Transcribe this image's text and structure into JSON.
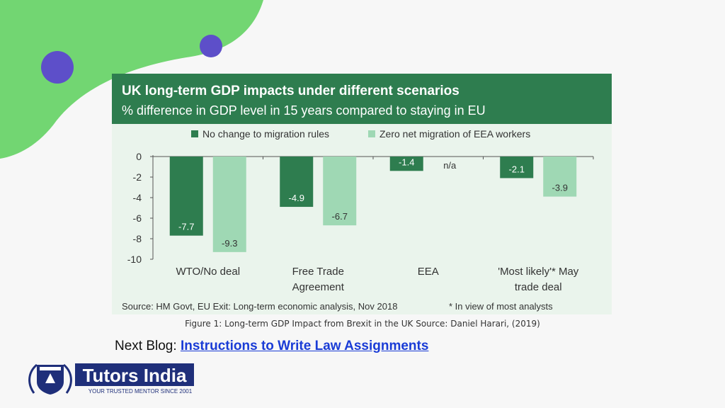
{
  "colors": {
    "header": "#2e7d4f",
    "panel": "#eaf4ec",
    "dark": "#2e7d4f",
    "light": "#9fd8b4",
    "blob": "#72d672",
    "dot": "#5d4fc9",
    "link": "#1a3cd6",
    "logo_navy": "#1f2f7a"
  },
  "chart_data": {
    "type": "bar",
    "title": "UK long-term GDP impacts under different scenarios",
    "subtitle": "% difference in GDP level in 15 years compared to staying in EU",
    "categories": [
      [
        "WTO/No deal"
      ],
      [
        "Free Trade",
        "Agreement"
      ],
      [
        "EEA"
      ],
      [
        "'Most likely'* May",
        "trade deal"
      ]
    ],
    "series": [
      {
        "name": "No change to migration rules",
        "values": [
          -7.7,
          -4.9,
          -1.4,
          -2.1
        ],
        "labels": [
          "-7.7",
          "-4.9",
          "-1.4",
          "-2.1"
        ]
      },
      {
        "name": "Zero net migration of EEA workers",
        "values": [
          -9.3,
          -6.7,
          null,
          -3.9
        ],
        "labels": [
          "-9.3",
          "-6.7",
          "n/a",
          "-3.9"
        ]
      }
    ],
    "ylim": [
      -10,
      0
    ],
    "yticks": [
      0,
      -2,
      -4,
      -6,
      -8,
      -10
    ],
    "legend": "top",
    "grid": false,
    "source": "Source: HM Govt, EU Exit: Long-term economic analysis, Nov 2018",
    "note": "* In view of most analysts"
  },
  "caption": "Figure 1: Long-term GDP Impact from Brexit in the UK Source: Daniel Harari, (2019)",
  "next_blog": {
    "prefix": "Next Blog: ",
    "link_text": "Instructions to Write Law Assignments"
  },
  "logo": {
    "name": "Tutors India",
    "tagline": "YOUR TRUSTED MENTOR SINCE 2001"
  }
}
